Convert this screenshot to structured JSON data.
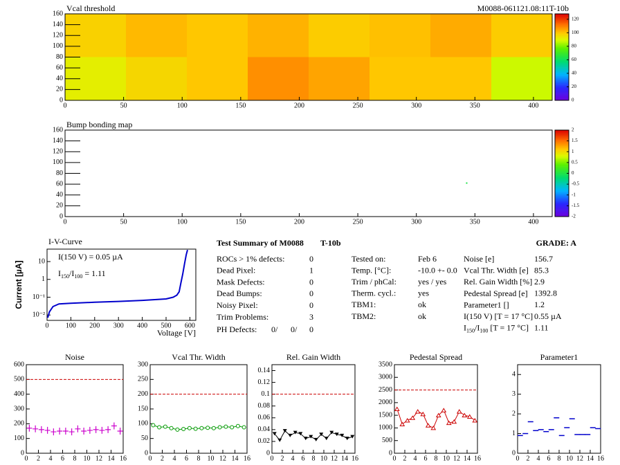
{
  "chart_data": [
    {
      "type": "heatmap",
      "title": "Vcal threshold",
      "subtitle": "M0088-061121.08:11T-10b",
      "xlim": [
        0,
        416
      ],
      "ylim": [
        0,
        160
      ],
      "xticks": [
        0,
        50,
        100,
        150,
        200,
        250,
        300,
        350,
        400
      ],
      "yticks": [
        0,
        20,
        40,
        60,
        80,
        100,
        120,
        140,
        160
      ],
      "zlim": [
        0,
        128
      ],
      "zticks": [
        0,
        20,
        40,
        60,
        80,
        100,
        120
      ],
      "values": [
        [
          98,
          102,
          100,
          103,
          99,
          101,
          104,
          99
        ],
        [
          92,
          97,
          100,
          108,
          105,
          100,
          100,
          88
        ]
      ]
    },
    {
      "type": "heatmap",
      "title": "Bump bonding map",
      "xlim": [
        0,
        416
      ],
      "ylim": [
        0,
        160
      ],
      "xticks": [
        0,
        50,
        100,
        150,
        200,
        250,
        300,
        350,
        400
      ],
      "yticks": [
        0,
        20,
        40,
        60,
        80,
        100,
        120,
        140,
        160
      ],
      "zlim": [
        -2,
        2
      ],
      "zticks": [
        -2,
        -1.5,
        -1,
        -0.5,
        0,
        0.5,
        1,
        1.5,
        2
      ],
      "points": {
        "x": [
          343
        ],
        "y": [
          62
        ],
        "z": [
          0
        ]
      }
    },
    {
      "type": "line",
      "title": "I-V-Curve",
      "xlabel": "Voltage [V]",
      "ylabel": "Current [µA]",
      "log_y": true,
      "color": "#0000cc",
      "xlim": [
        0,
        625
      ],
      "ylim": [
        0.005,
        50
      ],
      "xticks": [
        0,
        100,
        200,
        300,
        400,
        500,
        600
      ],
      "yticks": [
        {
          "value": 0.01,
          "label": "10⁻²"
        },
        {
          "value": 0.1,
          "label": "10⁻¹"
        },
        {
          "value": 1,
          "label": "1"
        },
        {
          "value": 10,
          "label": "10"
        }
      ],
      "x": [
        3,
        10,
        25,
        50,
        100,
        200,
        300,
        400,
        500,
        530,
        545,
        555,
        562,
        570,
        578,
        585,
        590
      ],
      "values": [
        0.007,
        0.015,
        0.03,
        0.042,
        0.046,
        0.052,
        0.058,
        0.066,
        0.08,
        0.1,
        0.13,
        0.2,
        0.6,
        2,
        8,
        25,
        45
      ],
      "annotations": [
        [
          "I(150 V) = 0.05 µA"
        ],
        [
          "I",
          "150",
          "/I",
          "100",
          " =  1.11"
        ]
      ]
    },
    {
      "type": "scatter",
      "title": "Noise",
      "marker": "plus",
      "color": "#cc00cc",
      "connect": false,
      "threshold": 500,
      "xlim": [
        0,
        16
      ],
      "ylim": [
        0,
        600
      ],
      "xticks": [
        0,
        2,
        4,
        6,
        8,
        10,
        12,
        14,
        16
      ],
      "yticks": [
        0,
        100,
        200,
        300,
        400,
        500,
        600
      ],
      "x": [
        0.5,
        1.5,
        2.5,
        3.5,
        4.5,
        5.5,
        6.5,
        7.5,
        8.5,
        9.5,
        10.5,
        11.5,
        12.5,
        13.5,
        14.5,
        15.5
      ],
      "values": [
        170,
        165,
        160,
        155,
        145,
        150,
        150,
        145,
        165,
        150,
        155,
        160,
        155,
        160,
        185,
        150
      ]
    },
    {
      "type": "scatter",
      "title": "Vcal Thr. Width",
      "marker": "circle",
      "color": "#009900",
      "connect": true,
      "threshold": 200,
      "xlim": [
        0,
        16
      ],
      "ylim": [
        0,
        300
      ],
      "xticks": [
        0,
        2,
        4,
        6,
        8,
        10,
        12,
        14,
        16
      ],
      "yticks": [
        0,
        50,
        100,
        150,
        200,
        250,
        300
      ],
      "x": [
        0.5,
        1.5,
        2.5,
        3.5,
        4.5,
        5.5,
        6.5,
        7.5,
        8.5,
        9.5,
        10.5,
        11.5,
        12.5,
        13.5,
        14.5,
        15.5
      ],
      "values": [
        95,
        88,
        90,
        85,
        80,
        82,
        85,
        83,
        85,
        86,
        85,
        88,
        90,
        88,
        92,
        88
      ]
    },
    {
      "type": "scatter",
      "title": "Rel. Gain Width",
      "marker": "triangle-down",
      "color": "#000000",
      "connect": true,
      "threshold": 0.1,
      "xlim": [
        0,
        16
      ],
      "ylim": [
        0,
        0.15
      ],
      "xticks": [
        0,
        2,
        4,
        6,
        8,
        10,
        12,
        14,
        16
      ],
      "yticks": [
        0,
        0.02,
        0.04,
        0.06,
        0.08,
        0.1,
        0.12,
        0.14
      ],
      "x": [
        0.5,
        1.5,
        2.5,
        3.5,
        4.5,
        5.5,
        6.5,
        7.5,
        8.5,
        9.5,
        10.5,
        11.5,
        12.5,
        13.5,
        14.5,
        15.5
      ],
      "values": [
        0.033,
        0.022,
        0.038,
        0.03,
        0.035,
        0.033,
        0.025,
        0.028,
        0.023,
        0.032,
        0.025,
        0.035,
        0.032,
        0.03,
        0.025,
        0.028
      ]
    },
    {
      "type": "scatter",
      "title": "Pedestal Spread",
      "marker": "triangle-up",
      "color": "#cc0000",
      "connect": true,
      "threshold": 2500,
      "xlim": [
        0,
        16
      ],
      "ylim": [
        0,
        3500
      ],
      "xticks": [
        0,
        2,
        4,
        6,
        8,
        10,
        12,
        14,
        16
      ],
      "yticks": [
        0,
        500,
        1000,
        1500,
        2000,
        2500,
        3000,
        3500
      ],
      "x": [
        0.5,
        1.5,
        2.5,
        3.5,
        4.5,
        5.5,
        6.5,
        7.5,
        8.5,
        9.5,
        10.5,
        11.5,
        12.5,
        13.5,
        14.5,
        15.5
      ],
      "values": [
        1750,
        1150,
        1300,
        1400,
        1650,
        1550,
        1100,
        1000,
        1500,
        1700,
        1200,
        1250,
        1650,
        1500,
        1450,
        1300
      ]
    },
    {
      "type": "scatter",
      "title": "Parameter1",
      "marker": "dash",
      "color": "#0000cc",
      "connect": false,
      "xlim": [
        0,
        16
      ],
      "ylim": [
        0,
        4.5
      ],
      "xticks": [
        0,
        2,
        4,
        6,
        8,
        10,
        12,
        14,
        16
      ],
      "yticks": [
        0,
        1,
        2,
        3,
        4
      ],
      "x": [
        0.5,
        1.5,
        2.5,
        3.5,
        4.5,
        5.5,
        6.5,
        7.5,
        8.5,
        9.5,
        10.5,
        11.5,
        12.5,
        13.5,
        14.5,
        15.5
      ],
      "values": [
        0.9,
        1.0,
        1.6,
        1.15,
        1.2,
        1.1,
        1.2,
        1.8,
        0.9,
        1.3,
        1.75,
        0.95,
        0.95,
        0.95,
        1.3,
        1.25
      ]
    }
  ],
  "summary": {
    "title": "Test Summary of M0088",
    "module_type": "T-10b",
    "grade": "GRADE:  A",
    "left_rows": [
      [
        "ROCs > 1% defects:",
        "0"
      ],
      [
        "Dead Pixel:",
        "1"
      ],
      [
        "Mask Defects:",
        "0"
      ],
      [
        "Dead Bumps:",
        "0"
      ],
      [
        "Noisy Pixel:",
        "0"
      ],
      [
        "Trim Problems:",
        "3"
      ]
    ],
    "ph_defects": {
      "label": "PH Defects:",
      "values": [
        "0/",
        "0/",
        "0"
      ],
      "colors": [
        "#000000",
        "#dd0000",
        "#0000cc"
      ]
    },
    "mid_rows": [
      [
        "Tested on:",
        "Feb 6"
      ],
      [
        "Temp. [°C]:",
        "-10.0 +- 0.0"
      ],
      [
        "Trim / phCal:",
        "yes / yes"
      ],
      [
        "Therm. cycl.:",
        "yes"
      ],
      [
        "TBM1:",
        "ok"
      ],
      [
        "TBM2:",
        "ok"
      ]
    ],
    "right_rows": [
      [
        [
          "Noise [e]"
        ],
        "156.7"
      ],
      [
        [
          "Vcal Thr. Width [e]"
        ],
        "85.3"
      ],
      [
        [
          "Rel. Gain Width [%]"
        ],
        "2.9"
      ],
      [
        [
          "Pedestal Spread [e]"
        ],
        "1392.8"
      ],
      [
        [
          "Parameter1 []"
        ],
        "1.2"
      ],
      [
        [
          "I(150 V)  [T = 17 °C]"
        ],
        "0.55 µA"
      ],
      [
        [
          "I",
          "150",
          "/I",
          "100",
          "  [T = 17 °C]"
        ],
        "1.11"
      ]
    ]
  }
}
